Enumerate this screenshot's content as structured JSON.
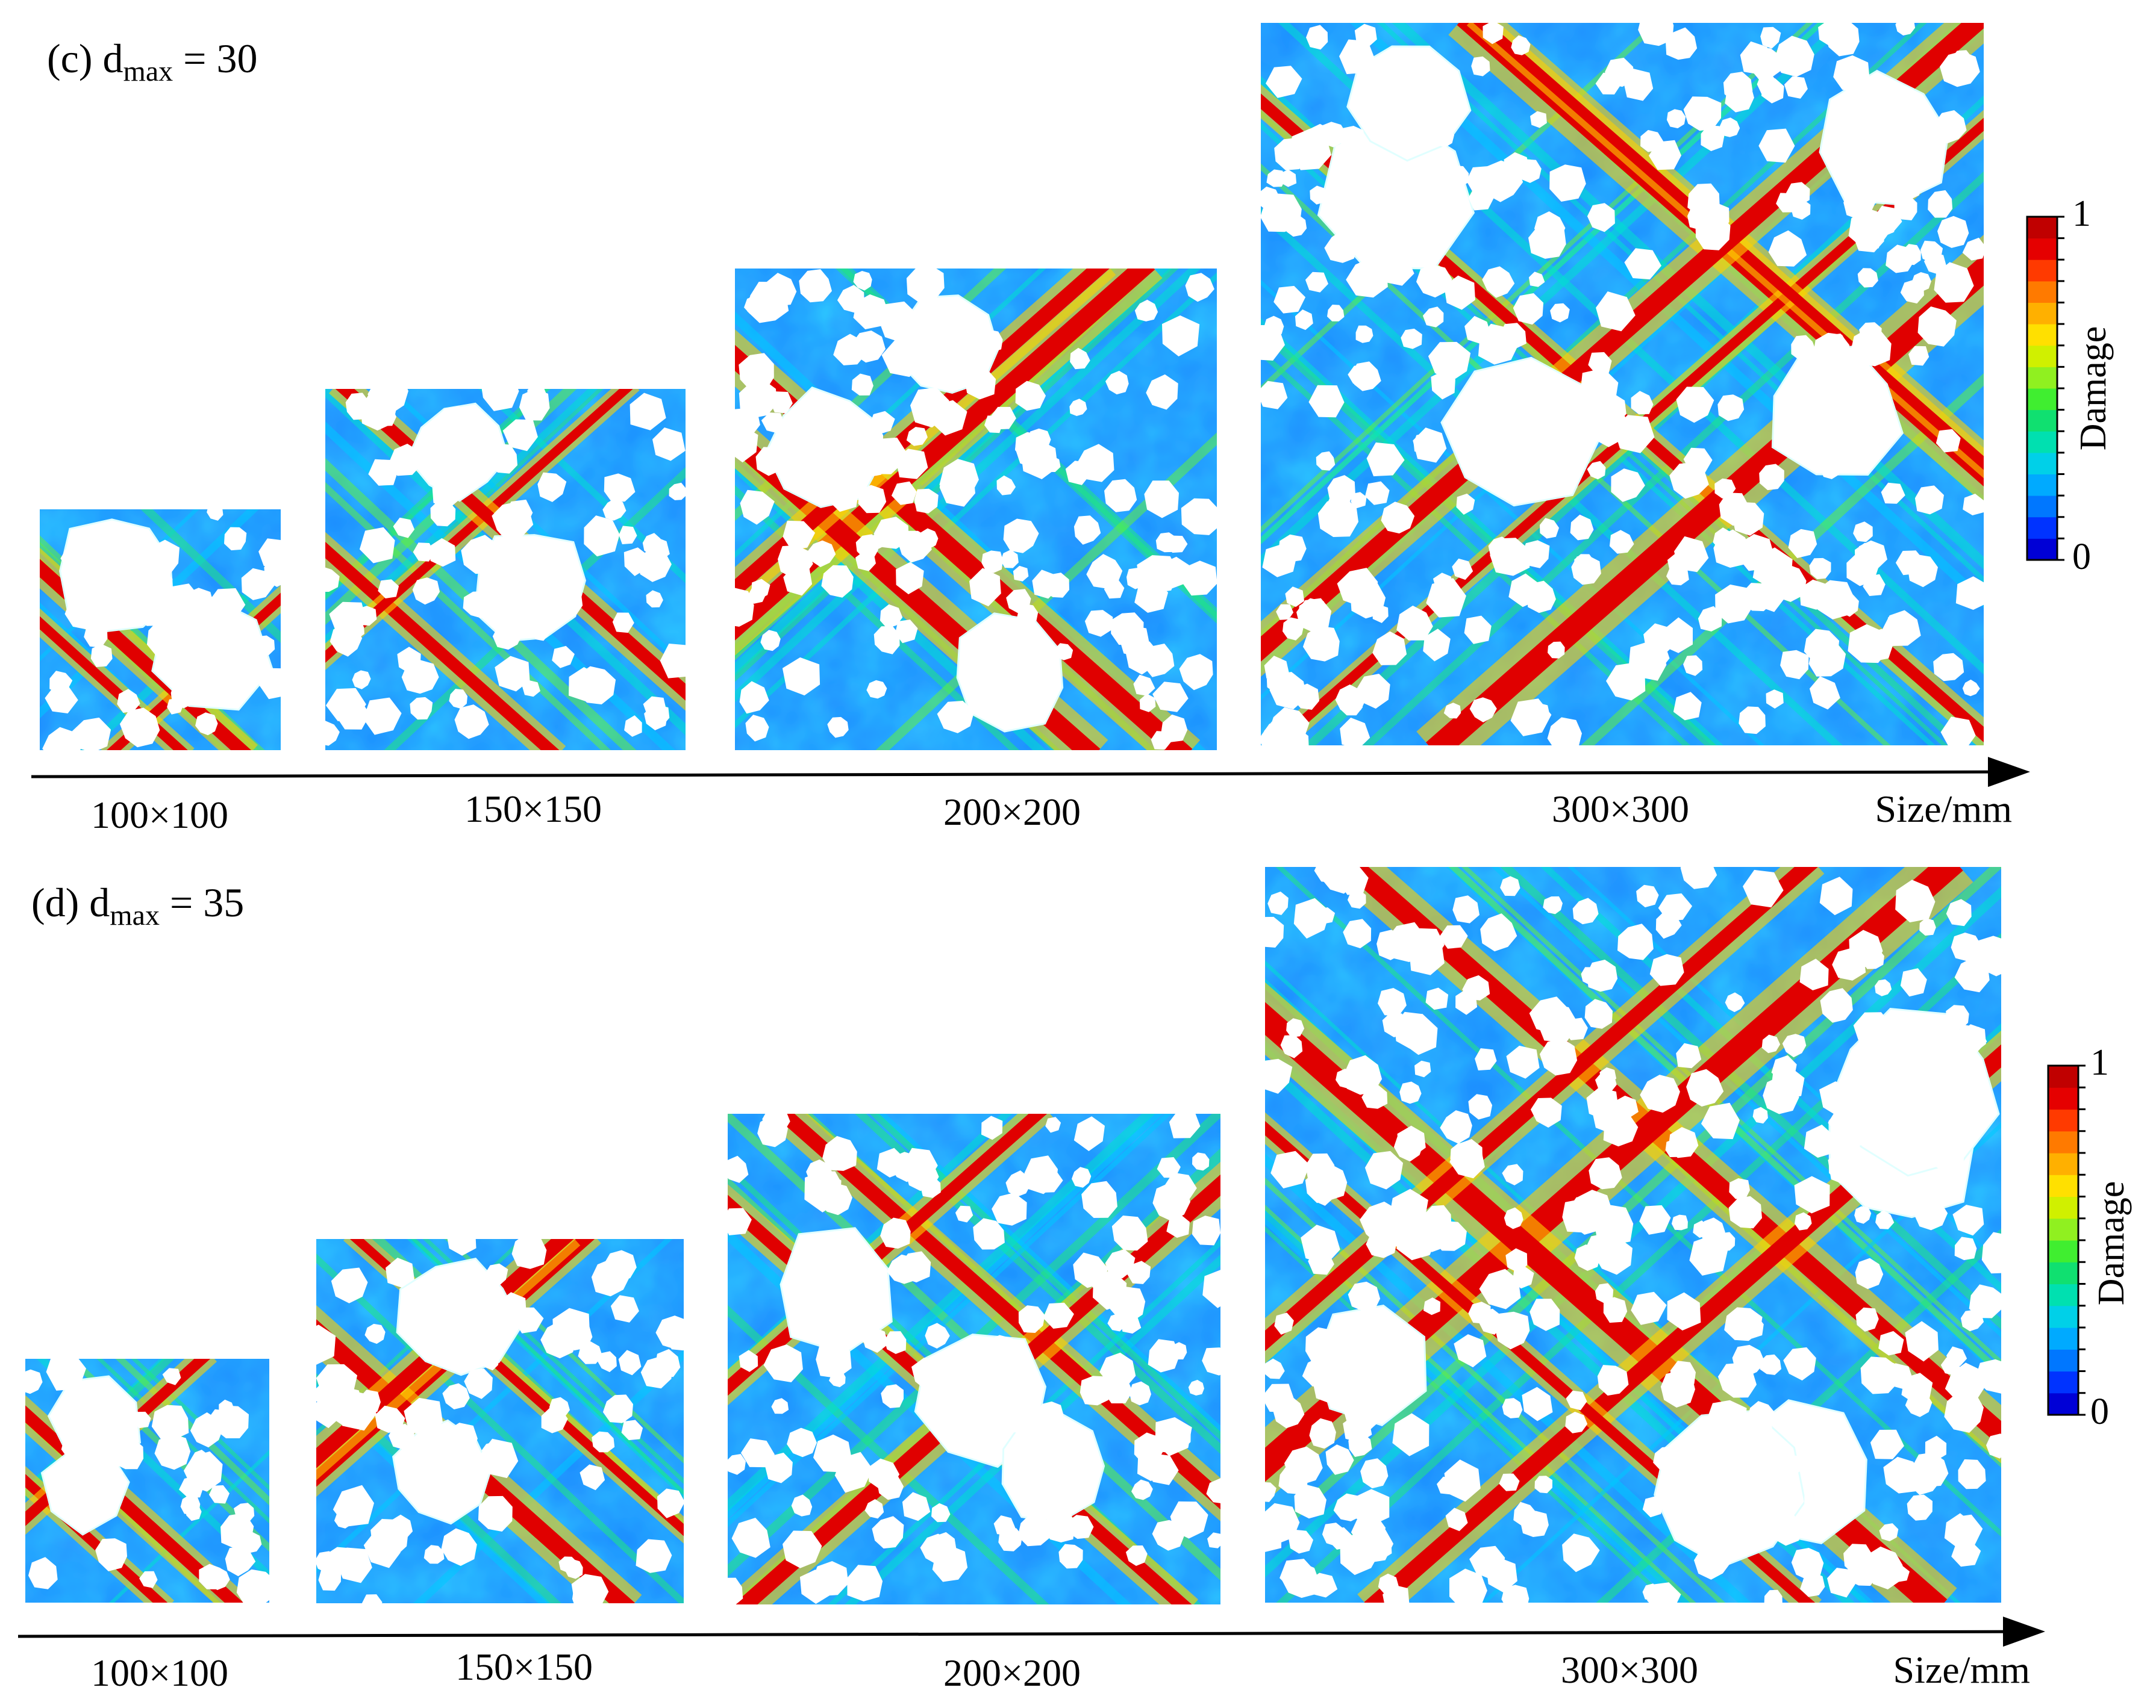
{
  "colors": {
    "damage_scale": [
      "#0000d6",
      "#0033ff",
      "#0077ff",
      "#00aaff",
      "#00d0e8",
      "#00e0b0",
      "#10e070",
      "#40ee30",
      "#90f020",
      "#d0f000",
      "#ffe000",
      "#ffb000",
      "#ff7a00",
      "#ff3a00",
      "#e50000",
      "#c00000"
    ],
    "background_field": "#1a8cff",
    "aggregate": "#ffffff",
    "crack": "#e00000"
  },
  "panels": [
    {
      "id": "c",
      "title_prefix": "(c) d",
      "title_sub": "max",
      "title_suffix": " = 30",
      "axis_label": "Size/mm",
      "specimens": [
        {
          "label": "100×100"
        },
        {
          "label": "150×150"
        },
        {
          "label": "200×200"
        },
        {
          "label": "300×300"
        }
      ],
      "colorbar": {
        "title": "Damage",
        "max_label": "1",
        "min_label": "0"
      }
    },
    {
      "id": "d",
      "title_prefix": "(d) d",
      "title_sub": "max",
      "title_suffix": " = 35",
      "axis_label": "Size/mm",
      "specimens": [
        {
          "label": "100×100"
        },
        {
          "label": "150×150"
        },
        {
          "label": "200×200"
        },
        {
          "label": "300×300"
        }
      ],
      "colorbar": {
        "title": "Damage",
        "max_label": "1",
        "min_label": "0"
      }
    }
  ]
}
